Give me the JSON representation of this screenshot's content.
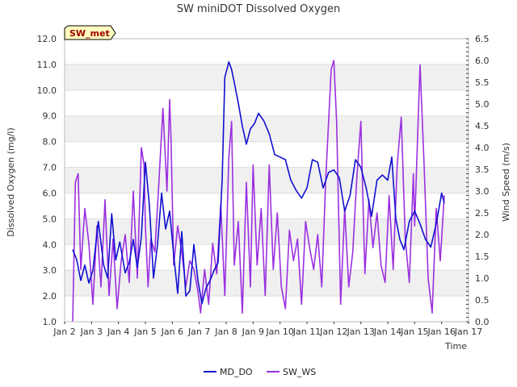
{
  "chart_data": {
    "type": "line",
    "title": "SW miniDOT Dissolved Oxygen",
    "badge": "SW_met",
    "xlabel": "Time",
    "ylabel": "Dissolved Oxygen (mg/l)",
    "y2label": "Wind Speed (m/s)",
    "x_ticks": [
      "Jan 2",
      "Jan 3",
      "Jan 4",
      "Jan 5",
      "Jan 6",
      "Jan 7",
      "Jan 8",
      "Jan 9",
      "Jan 10",
      "Jan 11",
      "Jan 12",
      "Jan 13",
      "Jan 14",
      "Jan 15",
      "Jan 16",
      "Jan 17"
    ],
    "y_ticks": [
      "1.0",
      "2.0",
      "3.0",
      "4.0",
      "5.0",
      "6.0",
      "7.0",
      "8.0",
      "9.0",
      "10.0",
      "11.0",
      "12.0"
    ],
    "y2_ticks": [
      "0.0",
      "0.5",
      "1.0",
      "1.5",
      "2.0",
      "2.5",
      "3.0",
      "3.5",
      "4.0",
      "4.5",
      "5.0",
      "5.5",
      "6.0",
      "6.5"
    ],
    "xlim": [
      2,
      17
    ],
    "ylim": [
      1,
      12
    ],
    "y2lim": [
      0,
      6.5
    ],
    "grid": true,
    "legend_position": "bottom-center",
    "series": [
      {
        "name": "MD_DO",
        "axis": "left",
        "color": "#1010d0",
        "x": [
          2.3,
          2.45,
          2.6,
          2.75,
          2.9,
          3.05,
          3.25,
          3.45,
          3.6,
          3.75,
          3.9,
          4.05,
          4.25,
          4.4,
          4.55,
          4.7,
          4.85,
          5.0,
          5.15,
          5.3,
          5.45,
          5.6,
          5.75,
          5.9,
          6.05,
          6.2,
          6.35,
          6.5,
          6.65,
          6.8,
          6.95,
          7.1,
          7.25,
          7.4,
          7.55,
          7.7,
          7.85,
          7.95,
          8.05,
          8.1,
          8.2,
          8.3,
          8.45,
          8.6,
          8.75,
          8.9,
          9.05,
          9.2,
          9.4,
          9.6,
          9.8,
          10.0,
          10.2,
          10.4,
          10.6,
          10.8,
          11.0,
          11.2,
          11.4,
          11.6,
          11.8,
          12.0,
          12.2,
          12.4,
          12.6,
          12.8,
          13.0,
          13.2,
          13.4,
          13.6,
          13.8,
          14.0,
          14.15,
          14.3,
          14.45,
          14.6,
          14.8,
          15.0,
          15.2,
          15.4,
          15.6,
          15.8,
          16.0,
          16.1
        ],
        "y": [
          3.8,
          3.4,
          2.6,
          3.2,
          2.5,
          3.0,
          4.9,
          3.2,
          2.7,
          5.2,
          3.4,
          4.1,
          2.9,
          3.3,
          4.2,
          3.1,
          4.3,
          7.2,
          5.5,
          2.7,
          4.0,
          6.0,
          4.6,
          5.3,
          3.6,
          2.1,
          4.5,
          2.0,
          2.2,
          4.0,
          2.6,
          1.7,
          2.3,
          2.6,
          3.0,
          3.3,
          6.5,
          10.5,
          10.9,
          11.1,
          10.8,
          10.3,
          9.5,
          8.6,
          7.9,
          8.5,
          8.7,
          9.1,
          8.8,
          8.3,
          7.5,
          7.4,
          7.3,
          6.5,
          6.1,
          5.8,
          6.2,
          7.3,
          7.2,
          6.2,
          6.8,
          6.9,
          6.6,
          5.3,
          5.9,
          7.3,
          7.0,
          6.2,
          5.1,
          6.5,
          6.7,
          6.5,
          7.4,
          5.0,
          4.2,
          3.8,
          4.9,
          5.3,
          4.8,
          4.2,
          3.9,
          4.8,
          6.0,
          5.6
        ],
        "values": [
          3.8,
          3.4,
          2.6,
          3.2,
          2.5,
          3.0,
          4.9,
          3.2,
          2.7,
          5.2,
          3.4,
          4.1,
          2.9,
          3.3,
          4.2,
          3.1,
          4.3,
          7.2,
          5.5,
          2.7,
          4.0,
          6.0,
          4.6,
          5.3,
          3.6,
          2.1,
          4.5,
          2.0,
          2.2,
          4.0,
          2.6,
          1.7,
          2.3,
          2.6,
          3.0,
          3.3,
          6.5,
          10.5,
          10.9,
          11.1,
          10.8,
          10.3,
          9.5,
          8.6,
          7.9,
          8.5,
          8.7,
          9.1,
          8.8,
          8.3,
          7.5,
          7.4,
          7.3,
          6.5,
          6.1,
          5.8,
          6.2,
          7.3,
          7.2,
          6.2,
          6.8,
          6.9,
          6.6,
          5.3,
          5.9,
          7.3,
          7.0,
          6.2,
          5.1,
          6.5,
          6.7,
          6.5,
          7.4,
          5.0,
          4.2,
          3.8,
          4.9,
          5.3,
          4.8,
          4.2,
          3.9,
          4.8,
          6.0,
          5.6
        ]
      },
      {
        "name": "SW_WS",
        "axis": "right",
        "color": "#9b30e0",
        "x": [
          2.3,
          2.4,
          2.5,
          2.6,
          2.75,
          2.9,
          3.05,
          3.2,
          3.35,
          3.5,
          3.65,
          3.8,
          3.95,
          4.1,
          4.25,
          4.4,
          4.55,
          4.7,
          4.85,
          4.95,
          5.0,
          5.1,
          5.2,
          5.35,
          5.5,
          5.65,
          5.8,
          5.9,
          5.95,
          6.05,
          6.2,
          6.35,
          6.5,
          6.65,
          6.8,
          6.95,
          7.05,
          7.2,
          7.35,
          7.5,
          7.65,
          7.8,
          7.95,
          8.1,
          8.2,
          8.3,
          8.45,
          8.6,
          8.75,
          8.9,
          9.0,
          9.15,
          9.3,
          9.45,
          9.6,
          9.75,
          9.9,
          10.05,
          10.2,
          10.35,
          10.5,
          10.65,
          10.8,
          10.95,
          11.1,
          11.25,
          11.4,
          11.55,
          11.7,
          11.9,
          12.0,
          12.1,
          12.25,
          12.4,
          12.55,
          12.7,
          12.85,
          13.0,
          13.15,
          13.3,
          13.45,
          13.6,
          13.75,
          13.9,
          14.05,
          14.2,
          14.35,
          14.5,
          14.65,
          14.8,
          14.95,
          15.0,
          15.1,
          15.2,
          15.35,
          15.5,
          15.65,
          15.8,
          15.95,
          16.1
        ],
        "y": [
          0.0,
          3.2,
          3.4,
          1.2,
          2.6,
          1.8,
          0.4,
          2.2,
          0.8,
          2.8,
          0.6,
          1.9,
          0.3,
          1.4,
          2.0,
          0.9,
          3.0,
          1.0,
          4.0,
          3.6,
          2.2,
          0.8,
          1.9,
          1.6,
          3.2,
          4.9,
          3.0,
          5.1,
          4.2,
          1.3,
          2.2,
          1.6,
          0.8,
          1.4,
          1.2,
          0.7,
          0.2,
          1.2,
          0.4,
          1.8,
          1.1,
          2.7,
          0.6,
          3.8,
          4.6,
          1.3,
          2.3,
          0.2,
          3.2,
          0.8,
          3.6,
          1.3,
          2.6,
          0.6,
          3.6,
          1.2,
          2.5,
          0.8,
          0.3,
          2.1,
          1.4,
          1.9,
          0.4,
          2.3,
          1.7,
          1.2,
          2.0,
          0.8,
          3.3,
          5.8,
          6.0,
          4.6,
          0.4,
          2.6,
          0.8,
          1.6,
          3.3,
          4.6,
          1.1,
          2.8,
          1.7,
          2.5,
          1.3,
          0.9,
          2.9,
          1.2,
          3.6,
          4.7,
          1.9,
          0.9,
          3.4,
          2.2,
          4.1,
          5.9,
          3.6,
          1.0,
          0.2,
          2.6,
          1.4,
          2.9
        ],
        "values": [
          0.0,
          3.2,
          3.4,
          1.2,
          2.6,
          1.8,
          0.4,
          2.2,
          0.8,
          2.8,
          0.6,
          1.9,
          0.3,
          1.4,
          2.0,
          0.9,
          3.0,
          1.0,
          4.0,
          3.6,
          2.2,
          0.8,
          1.9,
          1.6,
          3.2,
          4.9,
          3.0,
          5.1,
          4.2,
          1.3,
          2.2,
          1.6,
          0.8,
          1.4,
          1.2,
          0.7,
          0.2,
          1.2,
          0.4,
          1.8,
          1.1,
          2.7,
          0.6,
          3.8,
          4.6,
          1.3,
          2.3,
          0.2,
          3.2,
          0.8,
          3.6,
          1.3,
          2.6,
          0.6,
          3.6,
          1.2,
          2.5,
          0.8,
          0.3,
          2.1,
          1.4,
          1.9,
          0.4,
          2.3,
          1.7,
          1.2,
          2.0,
          0.8,
          3.3,
          5.8,
          6.0,
          4.6,
          0.4,
          2.6,
          0.8,
          1.6,
          3.3,
          4.6,
          1.1,
          2.8,
          1.7,
          2.5,
          1.3,
          0.9,
          2.9,
          1.2,
          3.6,
          4.7,
          1.9,
          0.9,
          3.4,
          2.2,
          4.1,
          5.9,
          3.6,
          1.0,
          0.2,
          2.6,
          1.4,
          2.9
        ]
      }
    ]
  }
}
